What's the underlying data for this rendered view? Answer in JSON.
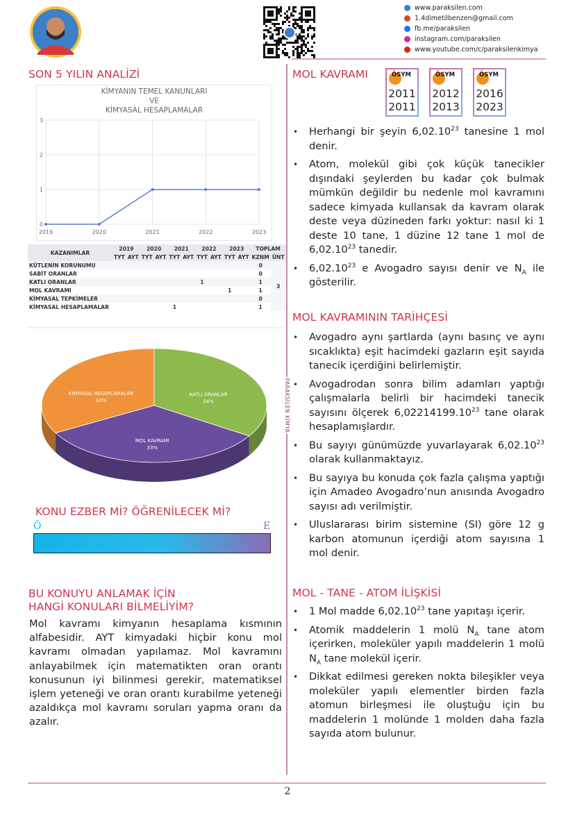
{
  "header": {
    "contacts": [
      "www.paraksilen.com",
      "1.4dimetilbenzen@gmail.com",
      "fb.me/paraksilen",
      "instagram.com/paraksilen",
      "www.youtube.com/c/paraksilenkimya"
    ]
  },
  "analysis": {
    "title": "SON 5 YILIN ANALİZİ"
  },
  "chart_data": [
    {
      "type": "line",
      "title": [
        "KİMYANIN TEMEL KANUNLARI",
        "VE",
        "KİMYASAL HESAPLAMALAR"
      ],
      "x": [
        2019,
        2020,
        2021,
        2022,
        2023
      ],
      "values": [
        0,
        0,
        1,
        1,
        1
      ],
      "color": "#5b7fc7",
      "xlim": [
        2019,
        2023
      ],
      "xticks": [
        2019,
        2020,
        2021,
        2022,
        2023
      ],
      "ylim": [
        0,
        3
      ],
      "yticks": [
        0,
        1,
        2,
        3
      ],
      "grid": true
    },
    {
      "type": "pie",
      "categories": [
        "KATLI ORANLAR",
        "MOL KAVRAMI",
        "KİMYASAL HESAPLAMALAR"
      ],
      "values": [
        34,
        33,
        33
      ],
      "value_labels": [
        "34%",
        "33%",
        "33%"
      ],
      "colors": [
        "#8dba4c",
        "#6a4d9e",
        "#f0923a"
      ]
    }
  ],
  "table": {
    "header": "KAZANIMLAR",
    "years": [
      2019,
      2020,
      2021,
      2022,
      2023
    ],
    "exam_types": [
      "TYT",
      "AYT"
    ],
    "total_header": "TOPLAM",
    "total_columns": [
      "KZNM",
      "ÜNT"
    ],
    "rows": [
      {
        "name": "KÜTLENİN KORUNUMU",
        "cells": [
          null,
          null,
          null,
          null,
          null,
          null,
          null,
          null,
          null,
          null
        ],
        "kznm": 0
      },
      {
        "name": "SABİT ORANLAR",
        "cells": [
          null,
          null,
          null,
          null,
          null,
          null,
          null,
          null,
          null,
          null
        ],
        "kznm": 0
      },
      {
        "name": "KATLI ORANLAR",
        "cells": [
          null,
          null,
          null,
          null,
          null,
          null,
          1,
          null,
          null,
          null
        ],
        "kznm": 1
      },
      {
        "name": "MOL KAVRAMI",
        "cells": [
          null,
          null,
          null,
          null,
          null,
          null,
          null,
          null,
          1,
          null
        ],
        "kznm": 1
      },
      {
        "name": "KİMYASAL TEPKİMELER",
        "cells": [
          null,
          null,
          null,
          null,
          null,
          null,
          null,
          null,
          null,
          null
        ],
        "kznm": 0
      },
      {
        "name": "KİMYASAL HESAPLAMALAR",
        "cells": [
          null,
          null,
          null,
          null,
          1,
          null,
          null,
          null,
          null,
          null
        ],
        "kznm": 1
      }
    ],
    "unt": 3
  },
  "ezber": {
    "title": "KONU EZBER Mİ? ÖĞRENİLECEK Mİ?",
    "start_label": "Ö",
    "end_label": "E"
  },
  "prereq": {
    "title": [
      "BU KONUYU ANLAMAK İÇİN",
      "HANGİ KONULARI BİLMELİYİM?"
    ],
    "text": "Mol kavramı kimyanın hesaplama kısmının alfabesidir. AYT kimyadaki hiçbir konu mol kavramı olmadan yapılamaz. Mol kavramını anlayabilmek için matematikten oran orantı konusunun iyi bilinmesi gerekir, matematiksel işlem yeteneği ve oran orantı kurabilme yeteneği azaldıkça mol kavramı soruları yapma oranı da azalır."
  },
  "mol": {
    "title": "MOL KAVRAMI",
    "badge_logo": "ÖSYM",
    "badges": [
      [
        2011,
        2011
      ],
      [
        2012,
        2013
      ],
      [
        2016,
        2023
      ]
    ],
    "bullets": [
      [
        "Herhangi bir şeyin 6,02.10",
        {
          "sup": "23"
        },
        " tanesine 1 mol denir."
      ],
      [
        "Atom, molekül gibi çok küçük tanecikler dışındaki şeylerden bu kadar çok bulmak mümkün değildir bu nedenle mol kavramını sadece kimyada kullansak da kavram olarak deste veya düzineden farkı yoktur: nasıl ki 1 deste 10 tane, 1 düzine 12 tane 1 mol de 6,02.10",
        {
          "sup": "23"
        },
        " tanedir."
      ],
      [
        "6,02.10",
        {
          "sup": "23"
        },
        " e Avogadro sayısı denir ve N",
        {
          "sub": "A"
        },
        " ile gösterilir."
      ]
    ]
  },
  "history": {
    "title": "MOL KAVRAMININ TARİHÇESİ",
    "bullets": [
      [
        "Avogadro aynı şartlarda (aynı basınç ve aynı sıcaklıkta) eşit hacimdeki gazların eşit sayıda tanecik içerdiğini belirlemiştir."
      ],
      [
        "Avogadrodan sonra bilim adamları yaptığı çalışmalarla belirli bir hacimdeki tanecik sayısını ölçerek 6,02214199.10",
        {
          "sup": "23"
        },
        " tane olarak hesaplamışlardır."
      ],
      [
        "Bu sayıyı günümüzde yuvarlayarak 6,02.10",
        {
          "sup": "23"
        },
        " olarak kullanmaktayız."
      ],
      [
        "Bu sayıya bu konuda çok fazla çalışma yaptığı için Amadeo Avogadro’nun anısında Avogadro sayısı adı verilmiştir."
      ],
      [
        "Uluslararası birim sistemine (SI) göre 12 g karbon atomunun içerdiği atom sayısına 1 mol denir."
      ]
    ]
  },
  "relation": {
    "title": "MOL  - TANE - ATOM İLİŞKİSİ",
    "bullets": [
      [
        "1 Mol madde 6,02.10",
        {
          "sup": "23"
        },
        " tane yapıtaşı içerir."
      ],
      [
        "Atomik maddelerin 1 molü N",
        {
          "sub": "A"
        },
        " tane atom içerirken, moleküler yapılı maddelerin 1 molü N",
        {
          "sub": "A"
        },
        " tane molekül içerir."
      ],
      [
        "Dikkat edilmesi gereken nokta bileşikler veya moleküler yapılı elementler birden fazla atomun birleşmesi ile oluştuğu için bu maddelerin 1 molünde 1 molden daha fazla sayıda atom bulunur."
      ]
    ]
  },
  "side_label": "PARAKSİLEN KİMYA",
  "page_number": 2
}
